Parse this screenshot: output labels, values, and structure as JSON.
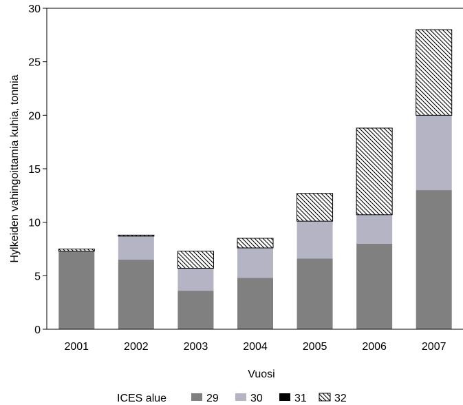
{
  "chart_data": {
    "type": "bar",
    "stacked": true,
    "categories": [
      "2001",
      "2002",
      "2003",
      "2004",
      "2005",
      "2006",
      "2007"
    ],
    "series": [
      {
        "name": "29",
        "color": "#808080",
        "pattern": "solid",
        "values": [
          7.3,
          6.5,
          3.6,
          4.8,
          6.6,
          8.0,
          13.0
        ]
      },
      {
        "name": "30",
        "color": "#b4b4c4",
        "pattern": "solid",
        "values": [
          0.0,
          2.2,
          2.1,
          2.8,
          3.5,
          2.7,
          7.0
        ]
      },
      {
        "name": "31",
        "color": "#000000",
        "pattern": "solid",
        "values": [
          0.0,
          0.0,
          0.0,
          0.0,
          0.0,
          0.0,
          0.0
        ]
      },
      {
        "name": "32",
        "color": "#000000",
        "pattern": "diagonal-hatch",
        "values": [
          0.2,
          0.1,
          1.6,
          0.9,
          2.6,
          8.1,
          8.0
        ]
      }
    ],
    "xlabel": "Vuosi",
    "ylabel": "Hylkeiden vahingoittamia kuhia, tonnia",
    "ylim": [
      0,
      30
    ],
    "yticks": [
      "0",
      "5",
      "10",
      "15",
      "20",
      "25",
      "30"
    ],
    "legend": {
      "title": "ICES alue",
      "placement": "bottom"
    },
    "grid": false
  }
}
